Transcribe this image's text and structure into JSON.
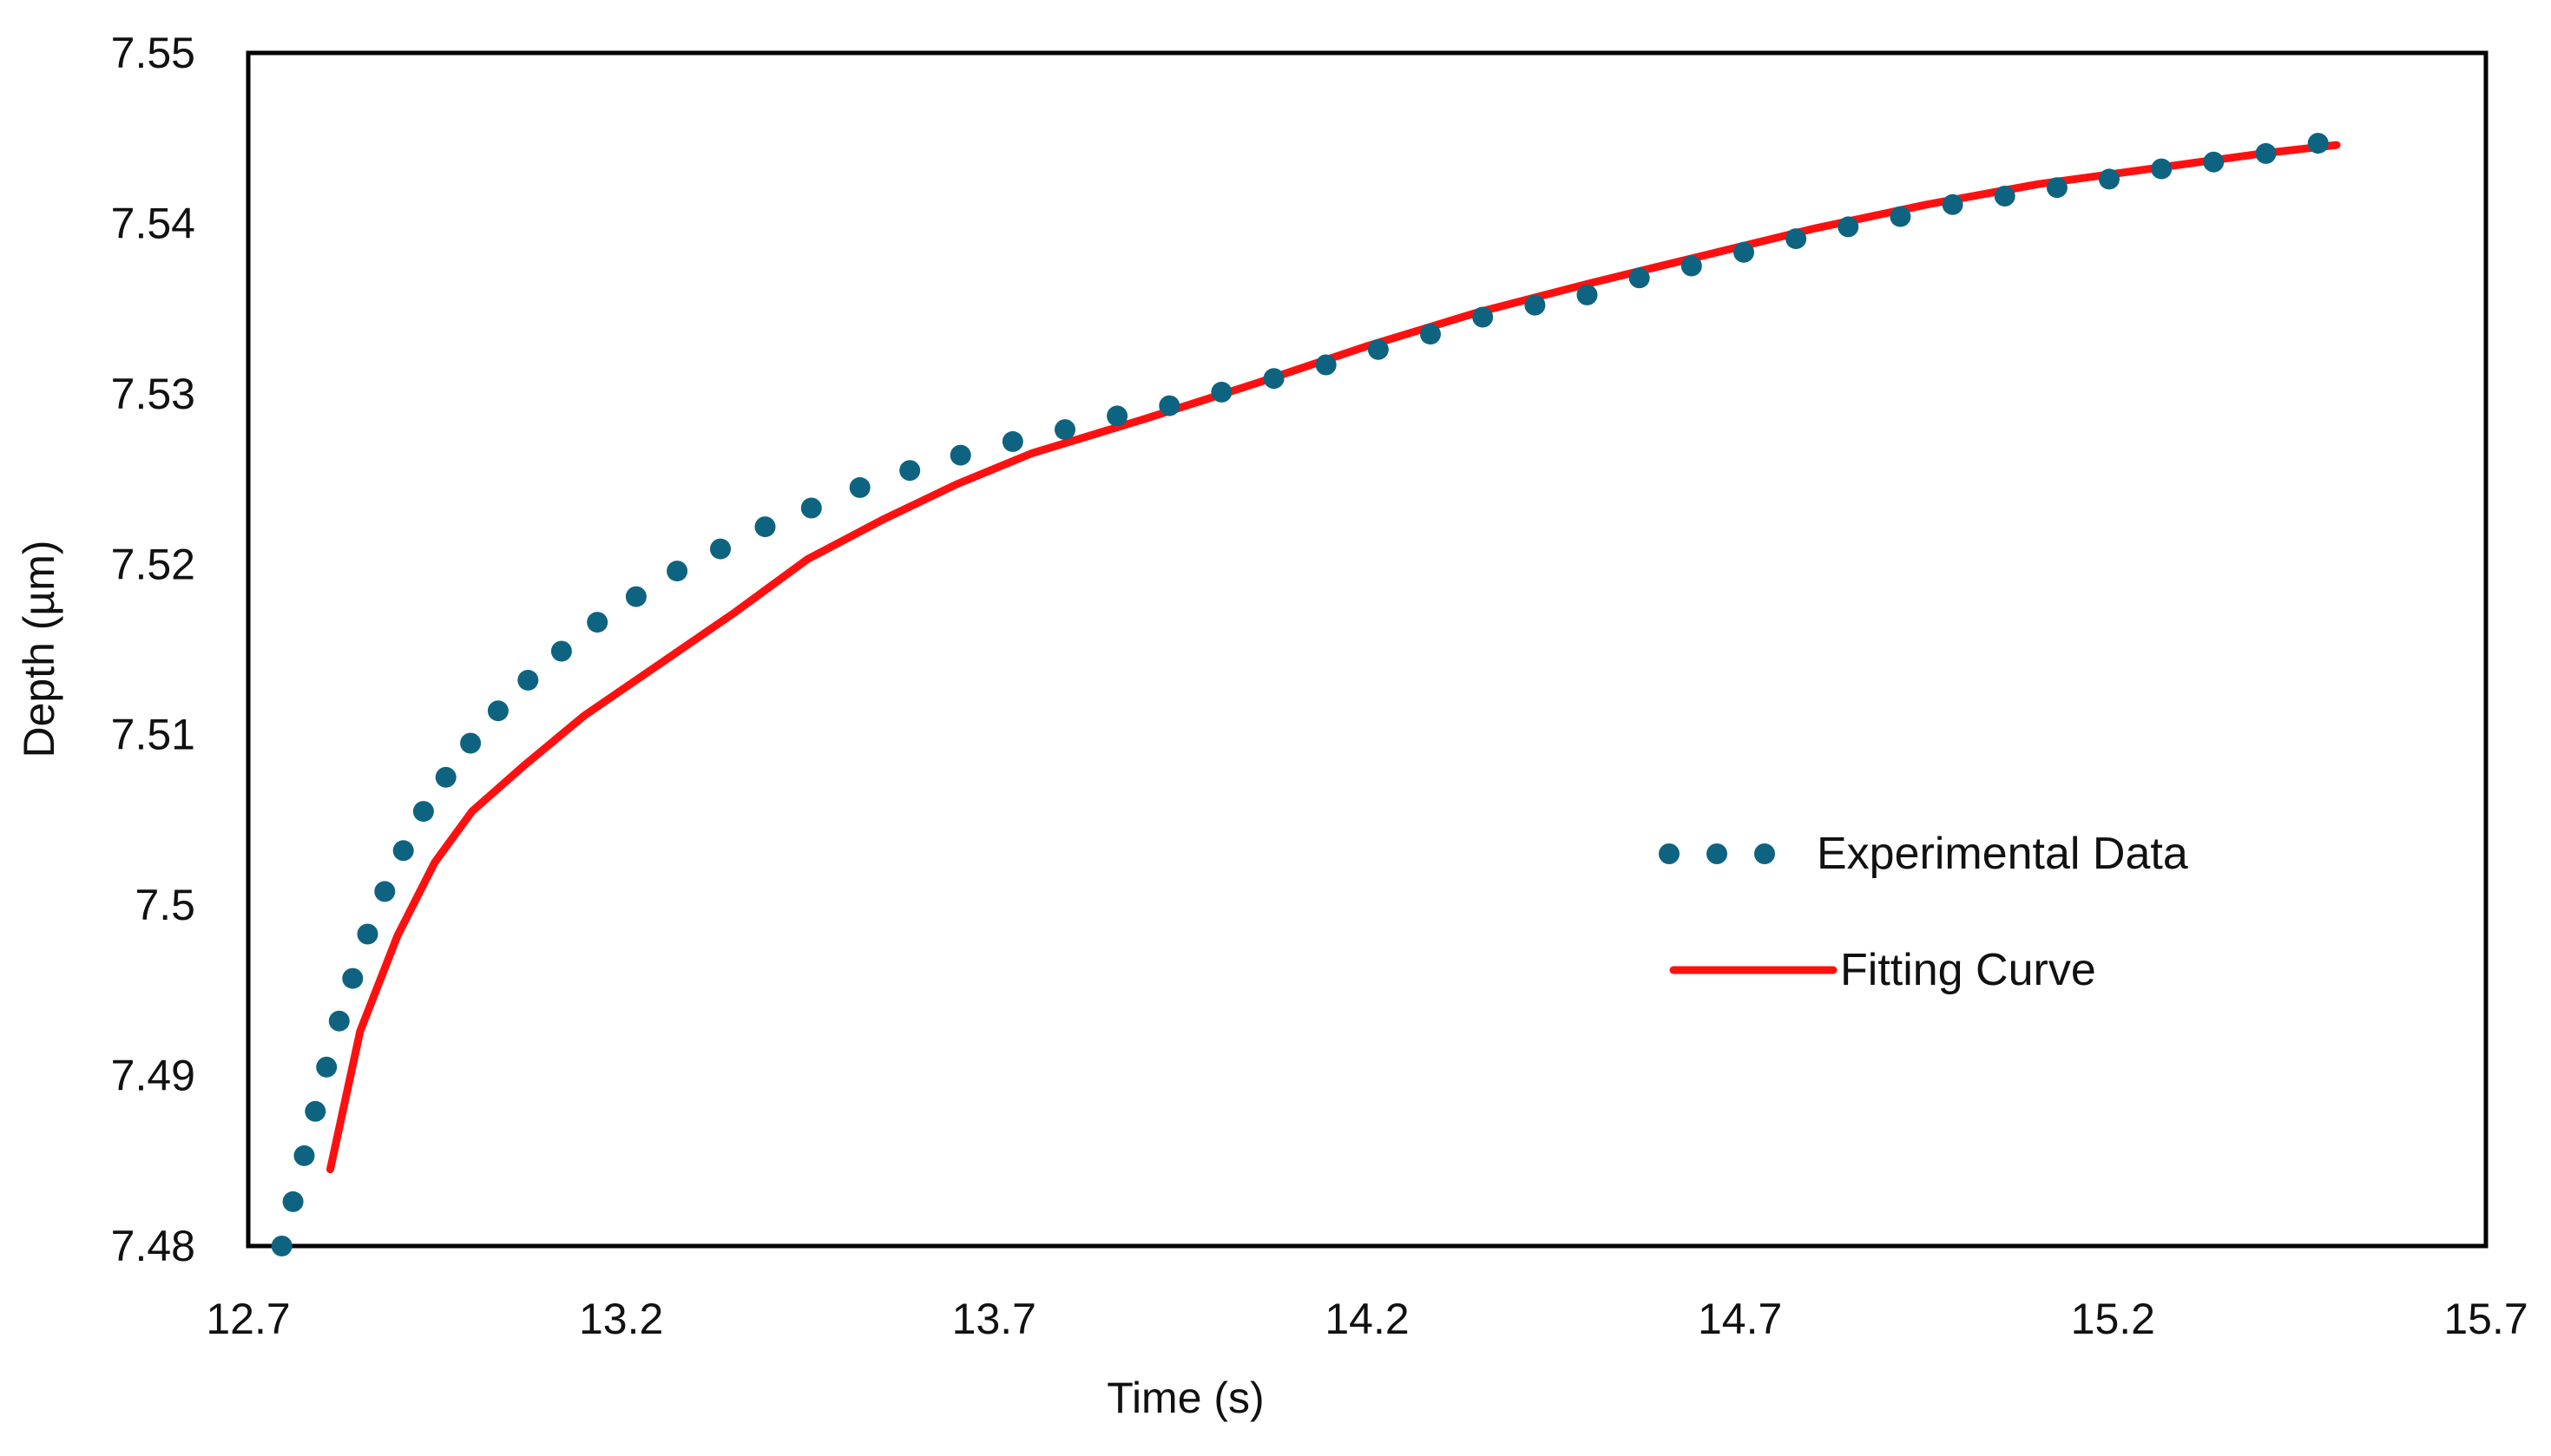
{
  "chart_data": {
    "type": "scatter",
    "title": "",
    "xlabel": "Time (s)",
    "ylabel": "Depth (µm)",
    "xlim": [
      12.7,
      15.7
    ],
    "ylim": [
      7.48,
      7.55
    ],
    "xticks": [
      12.7,
      13.2,
      13.7,
      14.2,
      14.7,
      15.2,
      15.7
    ],
    "xtick_labels": [
      "12.7",
      "13.2",
      "13.7",
      "14.2",
      "14.7",
      "15.2",
      "15.7"
    ],
    "yticks": [
      7.48,
      7.49,
      7.5,
      7.51,
      7.52,
      7.53,
      7.54,
      7.55
    ],
    "ytick_labels": [
      "7.48",
      "7.49",
      "7.5",
      "7.51",
      "7.52",
      "7.53",
      "7.54",
      "7.55"
    ],
    "grid": false,
    "legend_position": "center-right",
    "colors": {
      "experimental": "#0e6480",
      "fit": "#ff1010",
      "frame": "#000000"
    },
    "series": [
      {
        "name": "Experimental Data",
        "style": "markers",
        "x": [
          12.745,
          12.76,
          12.775,
          12.79,
          12.805,
          12.822,
          12.84,
          12.86,
          12.883,
          12.908,
          12.935,
          12.965,
          12.998,
          13.035,
          13.075,
          13.12,
          13.168,
          13.22,
          13.275,
          13.333,
          13.393,
          13.455,
          13.52,
          13.587,
          13.655,
          13.725,
          13.795,
          13.865,
          13.935,
          14.005,
          14.075,
          14.145,
          14.215,
          14.285,
          14.355,
          14.425,
          14.495,
          14.565,
          14.635,
          14.705,
          14.775,
          14.845,
          14.915,
          14.985,
          15.055,
          15.125,
          15.195,
          15.265,
          15.335,
          15.405,
          15.475
        ],
        "y": [
          7.48,
          7.4826,
          7.4853,
          7.4879,
          7.4905,
          7.4932,
          7.4957,
          7.4983,
          7.5008,
          7.5032,
          7.5055,
          7.5075,
          7.5095,
          7.5114,
          7.5132,
          7.5149,
          7.5166,
          7.5181,
          7.5196,
          7.5209,
          7.5222,
          7.5233,
          7.5245,
          7.5255,
          7.5264,
          7.5272,
          7.5279,
          7.5287,
          7.5293,
          7.5301,
          7.5309,
          7.5317,
          7.5326,
          7.5335,
          7.5345,
          7.5352,
          7.5358,
          7.5368,
          7.5375,
          7.5383,
          7.5391,
          7.5398,
          7.5404,
          7.5411,
          7.5416,
          7.5421,
          7.5426,
          7.5432,
          7.5436,
          7.5441,
          7.5447
        ]
      },
      {
        "name": "Fitting Curve",
        "style": "line",
        "x": [
          12.81,
          12.85,
          12.9,
          12.95,
          13.0,
          13.07,
          13.15,
          13.25,
          13.35,
          13.45,
          13.55,
          13.65,
          13.75,
          13.9,
          14.05,
          14.2,
          14.35,
          14.5,
          14.65,
          14.8,
          14.95,
          15.1,
          15.25,
          15.4,
          15.5
        ],
        "y": [
          7.4845,
          7.4926,
          7.4982,
          7.5025,
          7.5055,
          7.5082,
          7.5111,
          7.5141,
          7.5171,
          7.5203,
          7.5226,
          7.5247,
          7.5265,
          7.5285,
          7.5306,
          7.5328,
          7.5348,
          7.5365,
          7.5381,
          7.5397,
          7.5411,
          7.5423,
          7.5432,
          7.5441,
          7.5446
        ]
      }
    ]
  }
}
